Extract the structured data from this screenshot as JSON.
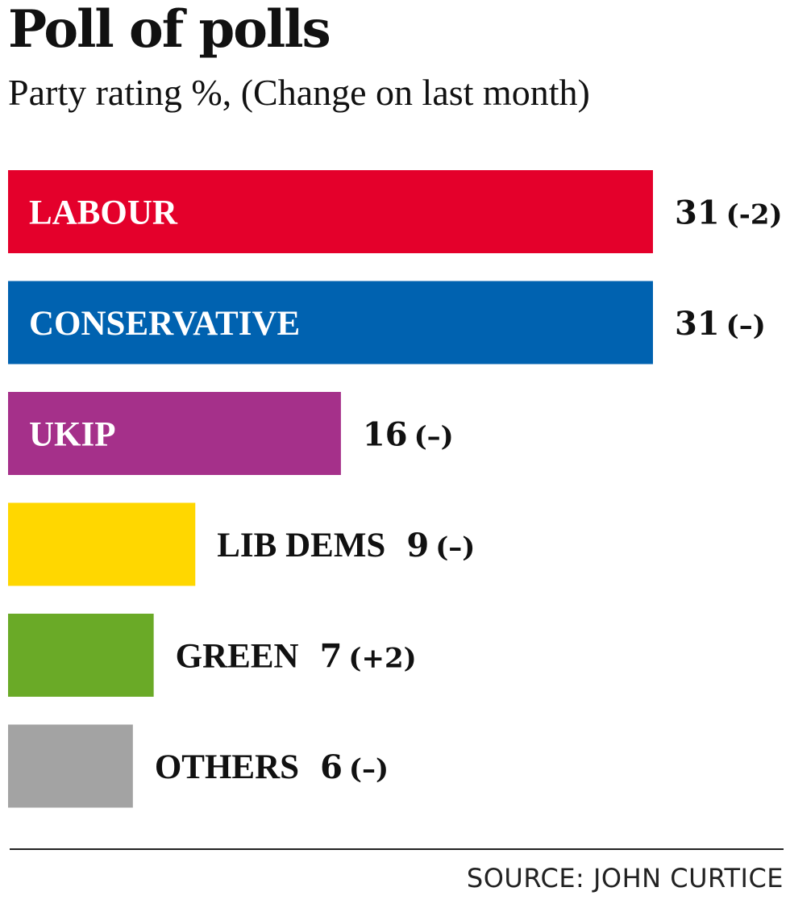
{
  "title": "Poll of polls",
  "subtitle": "Party rating %, (Change on last month)",
  "source": "SOURCE: JOHN CURTICE",
  "chart_data": {
    "type": "bar",
    "orientation": "horizontal",
    "title": "Poll of polls",
    "subtitle": "Party rating %, (Change on last month)",
    "categories": [
      "LABOUR",
      "CONSERVATIVE",
      "UKIP",
      "LIB DEMS",
      "GREEN",
      "OTHERS"
    ],
    "values": [
      31,
      31,
      16,
      9,
      7,
      6
    ],
    "value_labels": [
      "31",
      "31",
      "16",
      "9",
      "7",
      "6"
    ],
    "changes": [
      "(-2)",
      "(–)",
      "(–)",
      "(–)",
      "(+2)",
      "(–)"
    ],
    "colors": [
      "#e4002b",
      "#0062b0",
      "#a5308a",
      "#ffd700",
      "#6aaa27",
      "#a3a3a3"
    ],
    "label_inside": [
      true,
      true,
      true,
      false,
      false,
      false
    ],
    "xlim": [
      0,
      31
    ],
    "grid": false,
    "legend": "none",
    "xlabel": "",
    "ylabel": ""
  }
}
